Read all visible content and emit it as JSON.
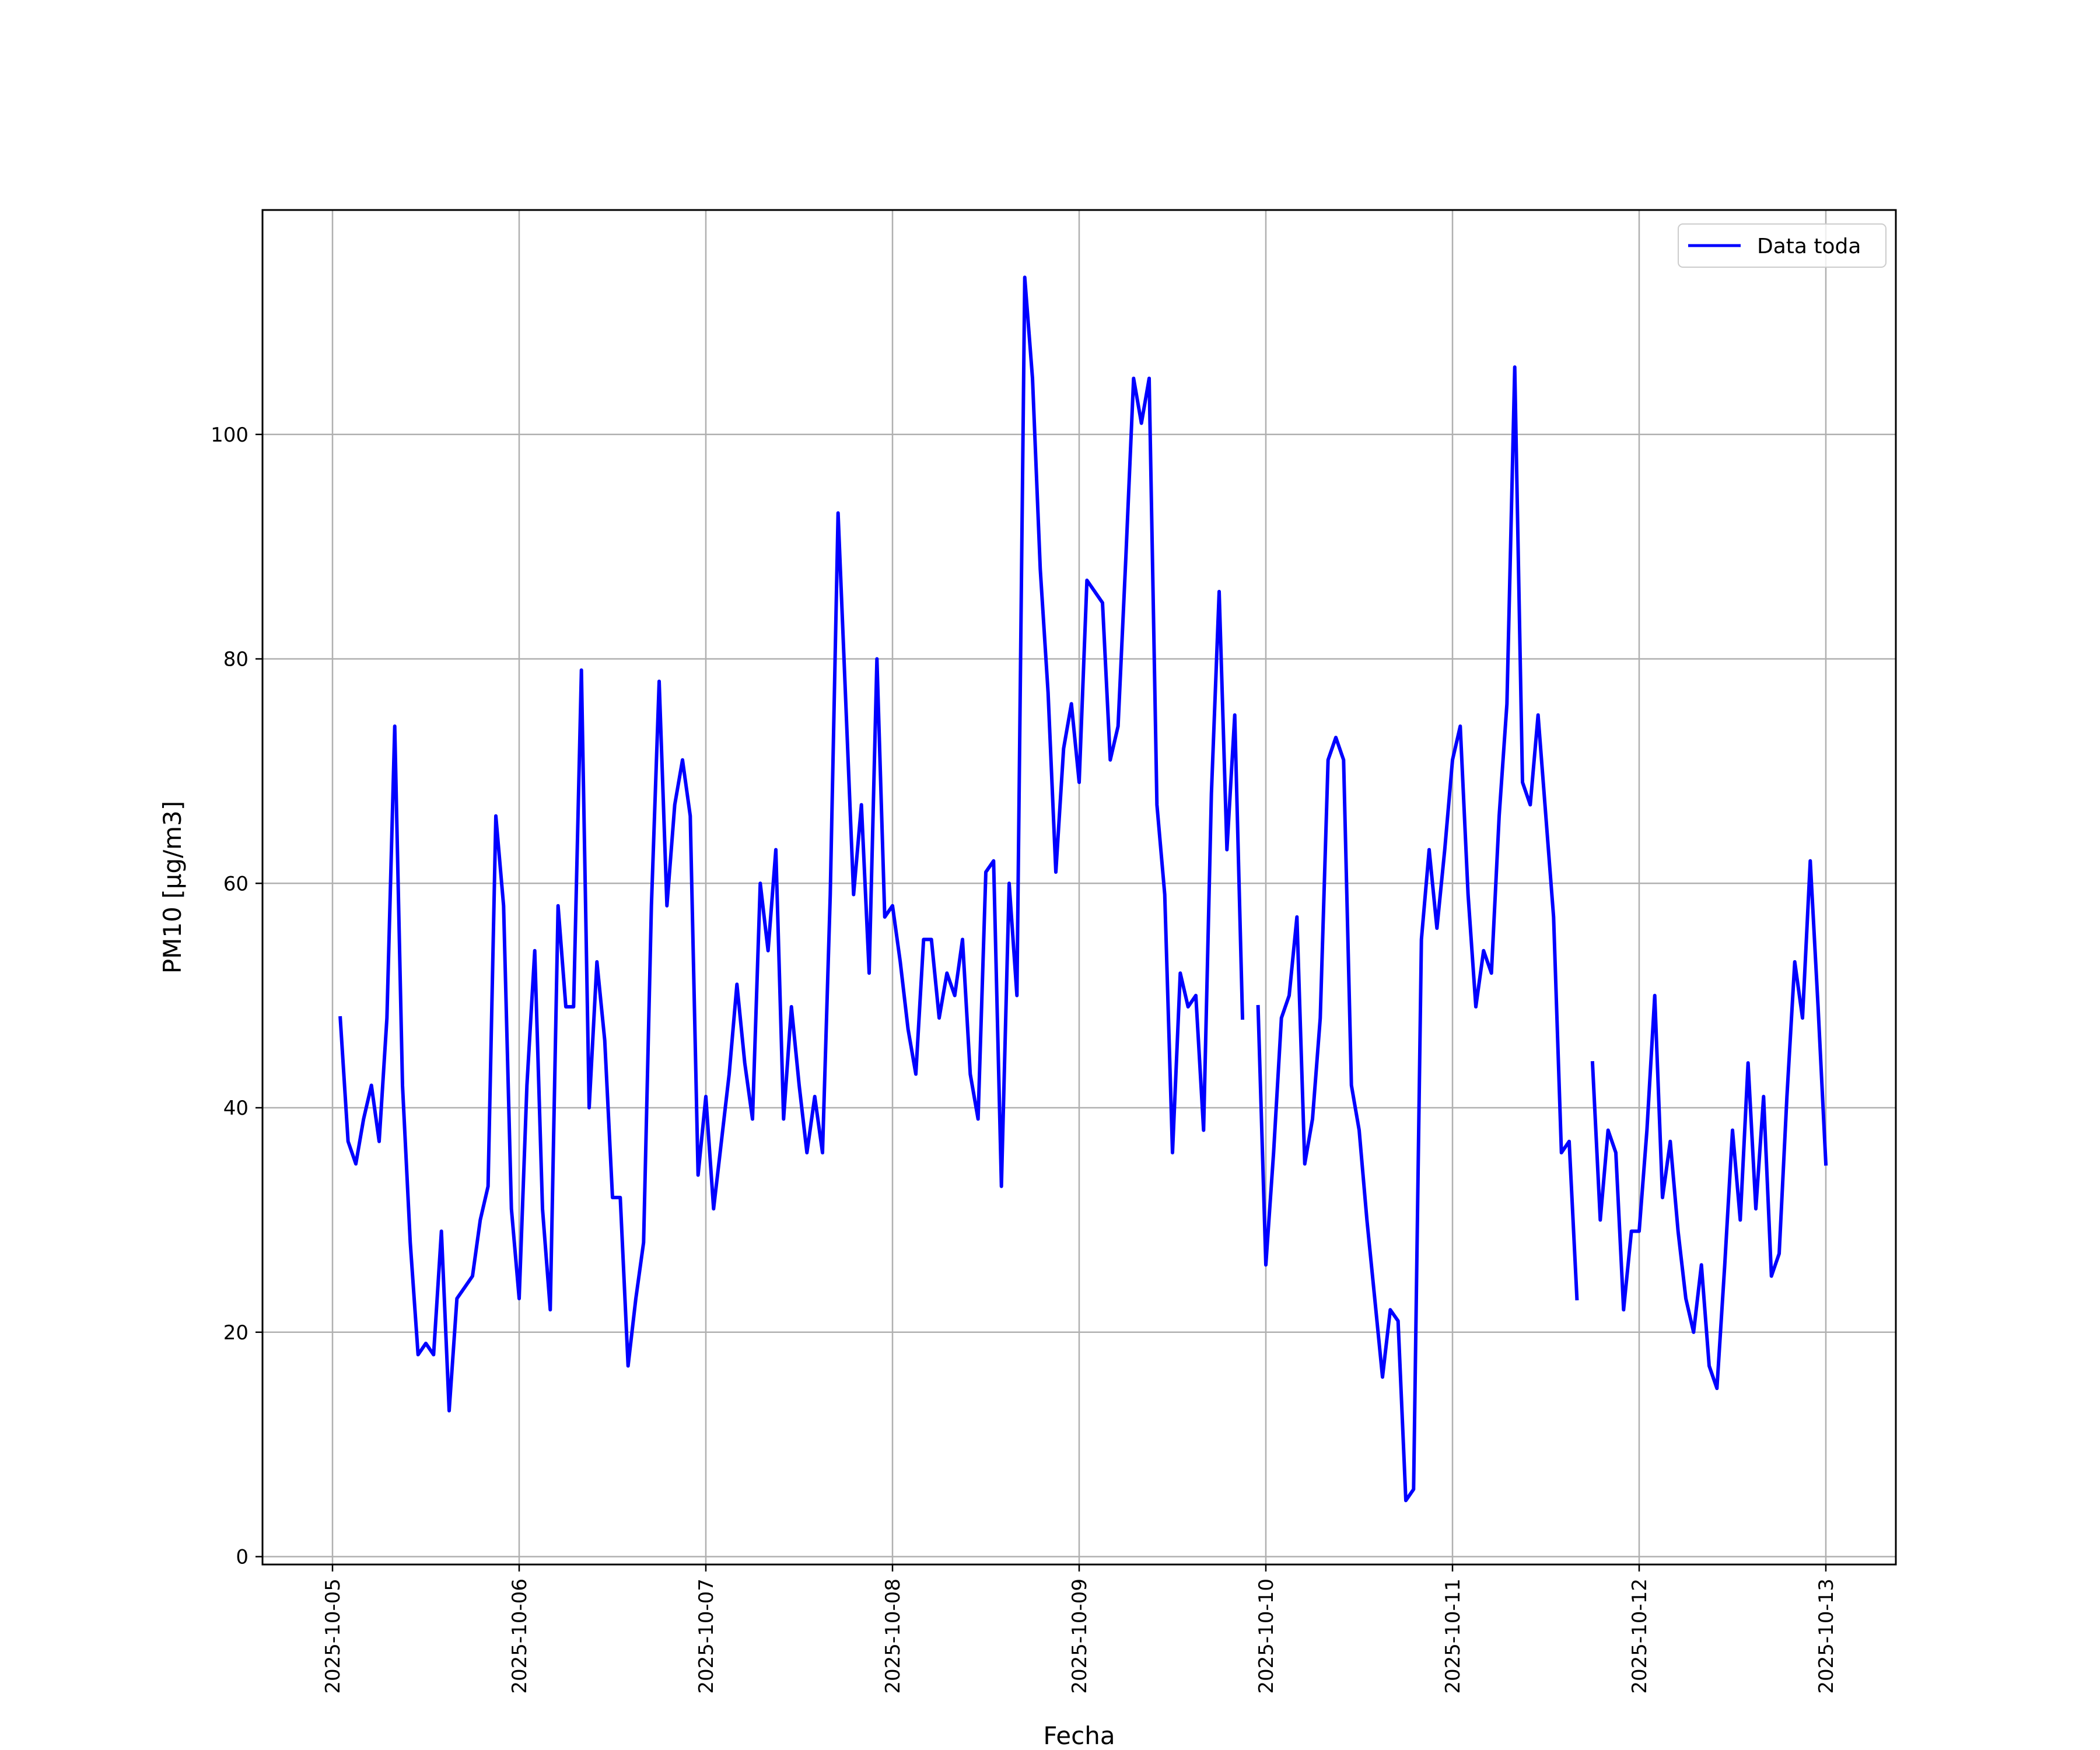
{
  "chart_data": {
    "type": "line",
    "title": "",
    "xlabel": "Fecha",
    "ylabel": "PM10 [μg/m3]",
    "xlim": [
      "2025-10-04 15:00",
      "2025-10-13 09:00"
    ],
    "ylim": [
      -0.7,
      120
    ],
    "xticks": [
      "2025-10-05",
      "2025-10-06",
      "2025-10-07",
      "2025-10-08",
      "2025-10-09",
      "2025-10-10",
      "2025-10-11",
      "2025-10-12",
      "2025-10-13"
    ],
    "yticks": [
      0,
      20,
      40,
      60,
      80,
      100
    ],
    "grid": true,
    "legend": "top-right",
    "colors": {
      "series": "#0000ff",
      "grid": "#b0b0b0",
      "axis": "#000000"
    },
    "series": [
      {
        "name": "Data toda",
        "points": [
          [
            "2025-10-05 01:00",
            48
          ],
          [
            "2025-10-05 02:00",
            37
          ],
          [
            "2025-10-05 03:00",
            35
          ],
          [
            "2025-10-05 04:00",
            39
          ],
          [
            "2025-10-05 05:00",
            42
          ],
          [
            "2025-10-05 06:00",
            37
          ],
          [
            "2025-10-05 07:00",
            48
          ],
          [
            "2025-10-05 08:00",
            74
          ],
          [
            "2025-10-05 09:00",
            42
          ],
          [
            "2025-10-05 10:00",
            28
          ],
          [
            "2025-10-05 11:00",
            18
          ],
          [
            "2025-10-05 12:00",
            19
          ],
          [
            "2025-10-05 13:00",
            18
          ],
          [
            "2025-10-05 14:00",
            29
          ],
          [
            "2025-10-05 15:00",
            13
          ],
          [
            "2025-10-05 16:00",
            23
          ],
          [
            "2025-10-05 17:00",
            24
          ],
          [
            "2025-10-05 18:00",
            25
          ],
          [
            "2025-10-05 19:00",
            30
          ],
          [
            "2025-10-05 20:00",
            33
          ],
          [
            "2025-10-05 21:00",
            66
          ],
          [
            "2025-10-05 22:00",
            58
          ],
          [
            "2025-10-05 23:00",
            31
          ],
          [
            "2025-10-06 00:00",
            23
          ],
          [
            "2025-10-06 01:00",
            42
          ],
          [
            "2025-10-06 02:00",
            54
          ],
          [
            "2025-10-06 03:00",
            31
          ],
          [
            "2025-10-06 04:00",
            22
          ],
          [
            "2025-10-06 05:00",
            58
          ],
          [
            "2025-10-06 06:00",
            49
          ],
          [
            "2025-10-06 07:00",
            49
          ],
          [
            "2025-10-06 08:00",
            79
          ],
          [
            "2025-10-06 09:00",
            40
          ],
          [
            "2025-10-06 10:00",
            53
          ],
          [
            "2025-10-06 11:00",
            46
          ],
          [
            "2025-10-06 12:00",
            32
          ],
          [
            "2025-10-06 13:00",
            32
          ],
          [
            "2025-10-06 14:00",
            17
          ],
          [
            "2025-10-06 15:00",
            23
          ],
          [
            "2025-10-06 16:00",
            28
          ],
          [
            "2025-10-06 17:00",
            58
          ],
          [
            "2025-10-06 18:00",
            78
          ],
          [
            "2025-10-06 19:00",
            58
          ],
          [
            "2025-10-06 20:00",
            67
          ],
          [
            "2025-10-06 21:00",
            71
          ],
          [
            "2025-10-06 22:00",
            66
          ],
          [
            "2025-10-06 23:00",
            34
          ],
          [
            "2025-10-07 00:00",
            41
          ],
          [
            "2025-10-07 01:00",
            31
          ],
          [
            "2025-10-07 02:00",
            37
          ],
          [
            "2025-10-07 03:00",
            43
          ],
          [
            "2025-10-07 04:00",
            51
          ],
          [
            "2025-10-07 05:00",
            44
          ],
          [
            "2025-10-07 06:00",
            39
          ],
          [
            "2025-10-07 07:00",
            60
          ],
          [
            "2025-10-07 08:00",
            54
          ],
          [
            "2025-10-07 09:00",
            63
          ],
          [
            "2025-10-07 10:00",
            39
          ],
          [
            "2025-10-07 11:00",
            49
          ],
          [
            "2025-10-07 12:00",
            42
          ],
          [
            "2025-10-07 13:00",
            36
          ],
          [
            "2025-10-07 14:00",
            41
          ],
          [
            "2025-10-07 15:00",
            36
          ],
          [
            "2025-10-07 16:00",
            59
          ],
          [
            "2025-10-07 17:00",
            93
          ],
          [
            "2025-10-07 18:00",
            76
          ],
          [
            "2025-10-07 19:00",
            59
          ],
          [
            "2025-10-07 20:00",
            67
          ],
          [
            "2025-10-07 21:00",
            52
          ],
          [
            "2025-10-07 22:00",
            80
          ],
          [
            "2025-10-07 23:00",
            57
          ],
          [
            "2025-10-08 00:00",
            58
          ],
          [
            "2025-10-08 01:00",
            53
          ],
          [
            "2025-10-08 02:00",
            47
          ],
          [
            "2025-10-08 03:00",
            43
          ],
          [
            "2025-10-08 04:00",
            55
          ],
          [
            "2025-10-08 05:00",
            55
          ],
          [
            "2025-10-08 06:00",
            48
          ],
          [
            "2025-10-08 07:00",
            52
          ],
          [
            "2025-10-08 08:00",
            50
          ],
          [
            "2025-10-08 09:00",
            55
          ],
          [
            "2025-10-08 10:00",
            43
          ],
          [
            "2025-10-08 11:00",
            39
          ],
          [
            "2025-10-08 12:00",
            61
          ],
          [
            "2025-10-08 13:00",
            62
          ],
          [
            "2025-10-08 14:00",
            33
          ],
          [
            "2025-10-08 15:00",
            60
          ],
          [
            "2025-10-08 16:00",
            50
          ],
          [
            "2025-10-08 17:00",
            114
          ],
          [
            "2025-10-08 18:00",
            105
          ],
          [
            "2025-10-08 19:00",
            88
          ],
          [
            "2025-10-08 20:00",
            77
          ],
          [
            "2025-10-08 21:00",
            61
          ],
          [
            "2025-10-08 22:00",
            72
          ],
          [
            "2025-10-08 23:00",
            76
          ],
          [
            "2025-10-09 00:00",
            69
          ],
          [
            "2025-10-09 01:00",
            87
          ],
          [
            "2025-10-09 02:00",
            86
          ],
          [
            "2025-10-09 03:00",
            85
          ],
          [
            "2025-10-09 04:00",
            71
          ],
          [
            "2025-10-09 05:00",
            74
          ],
          [
            "2025-10-09 06:00",
            89
          ],
          [
            "2025-10-09 07:00",
            105
          ],
          [
            "2025-10-09 08:00",
            101
          ],
          [
            "2025-10-09 09:00",
            105
          ],
          [
            "2025-10-09 10:00",
            67
          ],
          [
            "2025-10-09 11:00",
            59
          ],
          [
            "2025-10-09 12:00",
            36
          ],
          [
            "2025-10-09 13:00",
            52
          ],
          [
            "2025-10-09 14:00",
            49
          ],
          [
            "2025-10-09 15:00",
            50
          ],
          [
            "2025-10-09 16:00",
            38
          ],
          [
            "2025-10-09 17:00",
            68
          ],
          [
            "2025-10-09 18:00",
            86
          ],
          [
            "2025-10-09 19:00",
            63
          ],
          [
            "2025-10-09 20:00",
            75
          ],
          [
            "2025-10-09 21:00",
            48
          ],
          [
            "2025-10-09 22:00",
            null
          ],
          [
            "2025-10-09 23:00",
            49
          ],
          [
            "2025-10-10 00:00",
            26
          ],
          [
            "2025-10-10 01:00",
            36
          ],
          [
            "2025-10-10 02:00",
            48
          ],
          [
            "2025-10-10 03:00",
            50
          ],
          [
            "2025-10-10 04:00",
            57
          ],
          [
            "2025-10-10 05:00",
            35
          ],
          [
            "2025-10-10 06:00",
            39
          ],
          [
            "2025-10-10 07:00",
            48
          ],
          [
            "2025-10-10 08:00",
            71
          ],
          [
            "2025-10-10 09:00",
            73
          ],
          [
            "2025-10-10 10:00",
            71
          ],
          [
            "2025-10-10 11:00",
            42
          ],
          [
            "2025-10-10 12:00",
            38
          ],
          [
            "2025-10-10 13:00",
            30
          ],
          [
            "2025-10-10 14:00",
            23
          ],
          [
            "2025-10-10 15:00",
            16
          ],
          [
            "2025-10-10 16:00",
            22
          ],
          [
            "2025-10-10 17:00",
            21
          ],
          [
            "2025-10-10 18:00",
            5
          ],
          [
            "2025-10-10 19:00",
            6
          ],
          [
            "2025-10-10 20:00",
            55
          ],
          [
            "2025-10-10 21:00",
            63
          ],
          [
            "2025-10-10 22:00",
            56
          ],
          [
            "2025-10-10 23:00",
            63
          ],
          [
            "2025-10-11 00:00",
            71
          ],
          [
            "2025-10-11 01:00",
            74
          ],
          [
            "2025-10-11 02:00",
            59
          ],
          [
            "2025-10-11 03:00",
            49
          ],
          [
            "2025-10-11 04:00",
            54
          ],
          [
            "2025-10-11 05:00",
            52
          ],
          [
            "2025-10-11 06:00",
            66
          ],
          [
            "2025-10-11 07:00",
            76
          ],
          [
            "2025-10-11 08:00",
            106
          ],
          [
            "2025-10-11 09:00",
            69
          ],
          [
            "2025-10-11 10:00",
            67
          ],
          [
            "2025-10-11 11:00",
            75
          ],
          [
            "2025-10-11 12:00",
            66
          ],
          [
            "2025-10-11 13:00",
            57
          ],
          [
            "2025-10-11 14:00",
            36
          ],
          [
            "2025-10-11 15:00",
            37
          ],
          [
            "2025-10-11 16:00",
            23
          ],
          [
            "2025-10-11 17:00",
            null
          ],
          [
            "2025-10-11 18:00",
            44
          ],
          [
            "2025-10-11 19:00",
            30
          ],
          [
            "2025-10-11 20:00",
            38
          ],
          [
            "2025-10-11 21:00",
            36
          ],
          [
            "2025-10-11 22:00",
            22
          ],
          [
            "2025-10-11 23:00",
            29
          ],
          [
            "2025-10-12 00:00",
            29
          ],
          [
            "2025-10-12 01:00",
            38
          ],
          [
            "2025-10-12 02:00",
            50
          ],
          [
            "2025-10-12 03:00",
            32
          ],
          [
            "2025-10-12 04:00",
            37
          ],
          [
            "2025-10-12 05:00",
            29
          ],
          [
            "2025-10-12 06:00",
            23
          ],
          [
            "2025-10-12 07:00",
            20
          ],
          [
            "2025-10-12 08:00",
            26
          ],
          [
            "2025-10-12 09:00",
            17
          ],
          [
            "2025-10-12 10:00",
            15
          ],
          [
            "2025-10-12 11:00",
            26
          ],
          [
            "2025-10-12 12:00",
            38
          ],
          [
            "2025-10-12 13:00",
            30
          ],
          [
            "2025-10-12 14:00",
            44
          ],
          [
            "2025-10-12 15:00",
            31
          ],
          [
            "2025-10-12 16:00",
            41
          ],
          [
            "2025-10-12 17:00",
            25
          ],
          [
            "2025-10-12 18:00",
            27
          ],
          [
            "2025-10-12 19:00",
            41
          ],
          [
            "2025-10-12 20:00",
            53
          ],
          [
            "2025-10-12 21:00",
            48
          ],
          [
            "2025-10-12 22:00",
            62
          ],
          [
            "2025-10-12 23:00",
            49
          ],
          [
            "2025-10-13 00:00",
            35
          ]
        ]
      }
    ]
  }
}
